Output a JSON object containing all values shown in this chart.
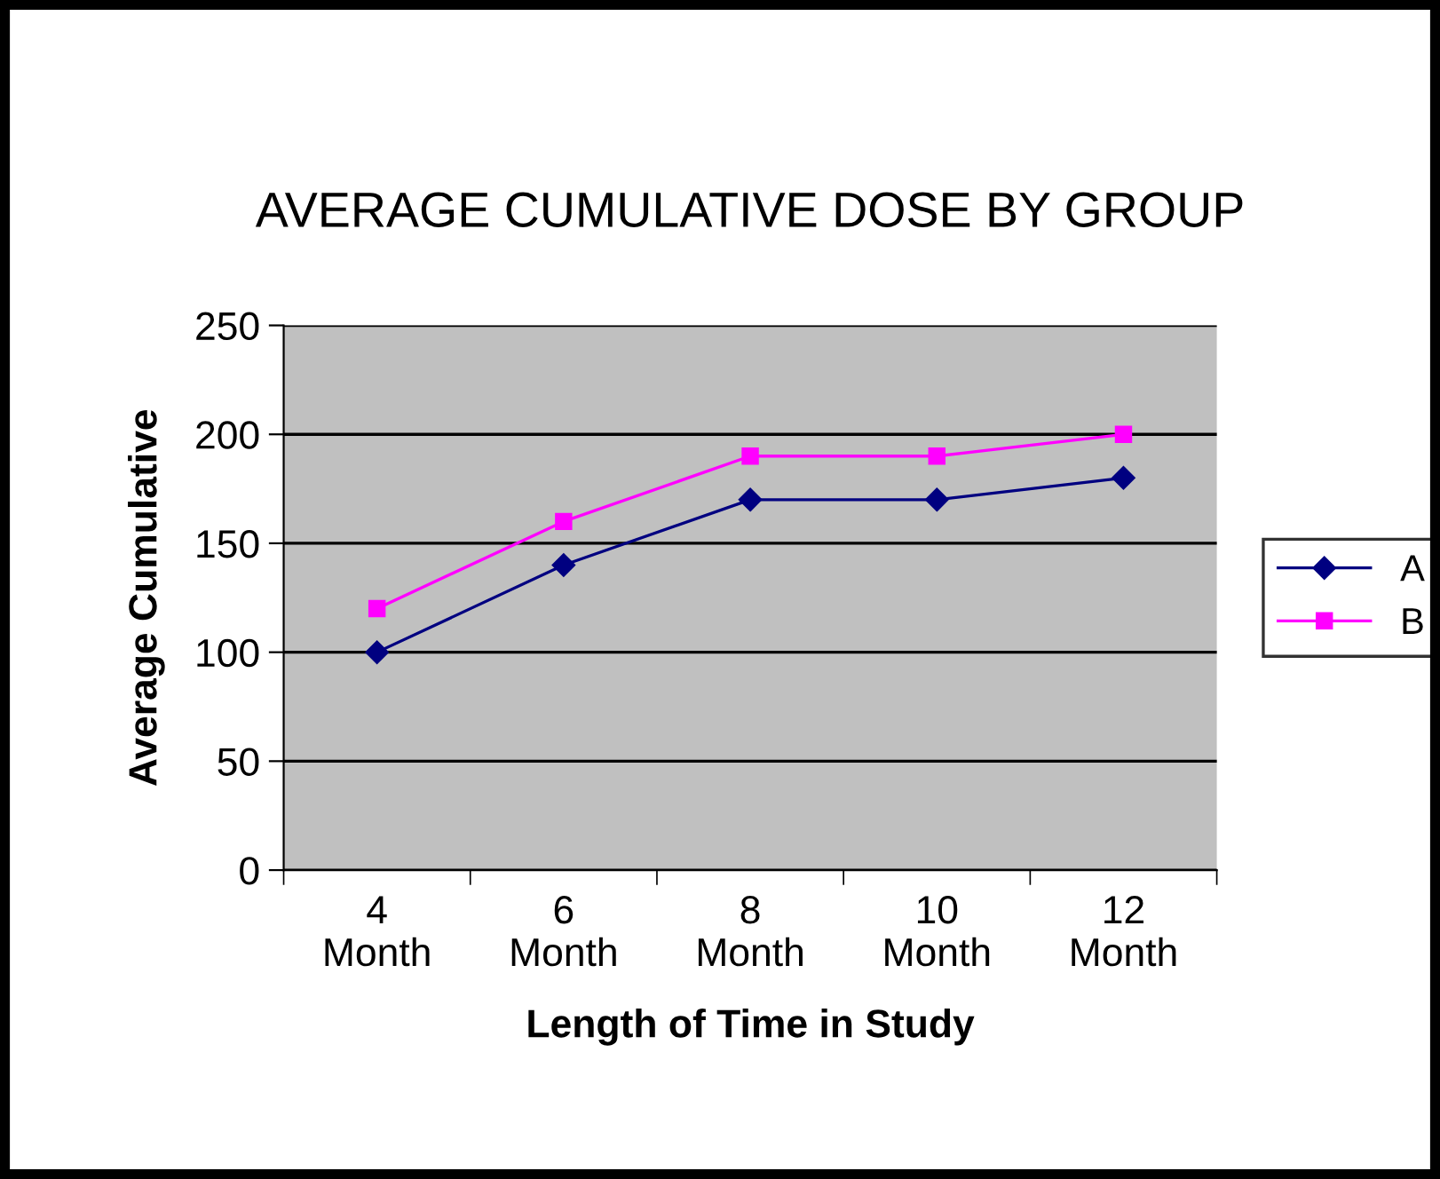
{
  "chart_data": {
    "type": "line",
    "title": "AVERAGE CUMULATIVE DOSE BY GROUP",
    "xlabel": "Length of Time in Study",
    "ylabel": "Average Cumulative",
    "categories": [
      "4\nMonth",
      "6\nMonth",
      "8\nMonth",
      "10\nMonth",
      "12\nMonth"
    ],
    "series": [
      {
        "name": "A",
        "color": "#000080",
        "marker": "diamond",
        "values": [
          100,
          140,
          170,
          170,
          180
        ]
      },
      {
        "name": "B",
        "color": "#ff00ff",
        "marker": "square",
        "values": [
          120,
          160,
          190,
          190,
          200
        ]
      }
    ],
    "ylim": [
      0,
      250
    ],
    "yticks": [
      0,
      50,
      100,
      150,
      200,
      250
    ],
    "grid": "y",
    "legend": "right",
    "line_style": "solid"
  }
}
